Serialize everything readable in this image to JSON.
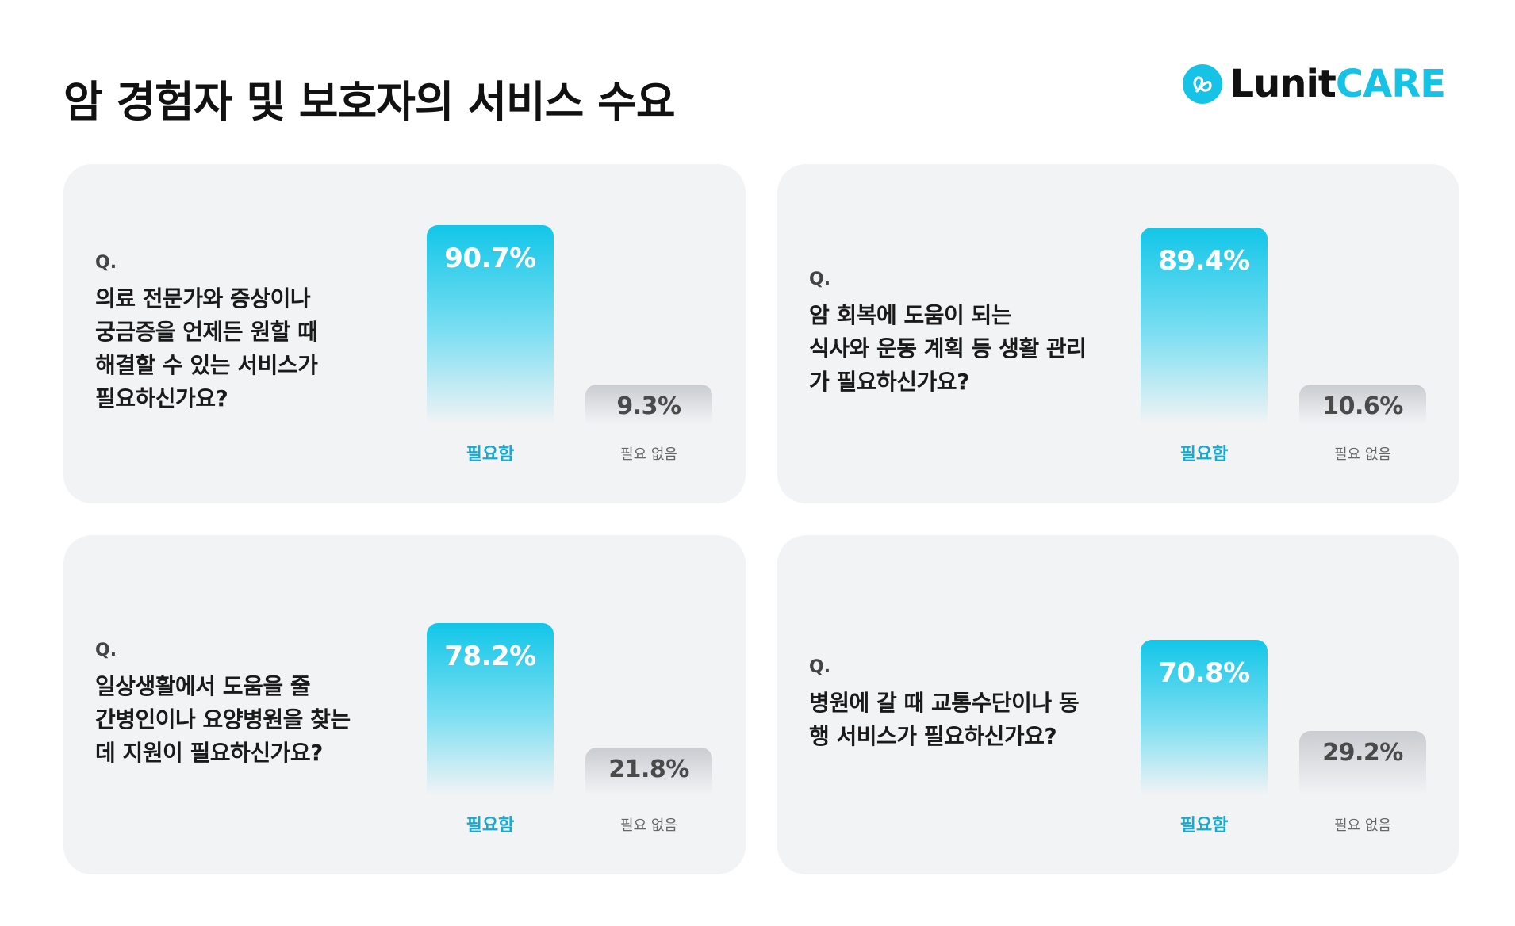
{
  "header": {
    "title": "암 경험자 및 보호자의 서비스 수요",
    "logo_lunit": "Lunit",
    "logo_care": "CARE"
  },
  "colors": {
    "accent": "#14c3e6",
    "need_label": "#17a9cf",
    "no_bar": "#c9ccd0",
    "card_bg": "#f2f3f5"
  },
  "cards": [
    {
      "q_prefix": "Q.",
      "question_lines": [
        "의료 전문가와 증상이나",
        "궁금증을 언제든 원할 때",
        "해결할 수 있는 서비스가",
        "필요하신가요?"
      ]
    },
    {
      "q_prefix": "Q.",
      "question_lines": [
        "암 회복에 도움이 되는",
        "식사와 운동 계획 등 생활 관리",
        "가 필요하신가요?"
      ]
    },
    {
      "q_prefix": "Q.",
      "question_lines": [
        "일상생활에서 도움을 줄",
        "간병인이나 요양병원을 찾는",
        "데 지원이 필요하신가요?"
      ]
    },
    {
      "q_prefix": "Q.",
      "question_lines": [
        "병원에 갈 때 교통수단이나 동",
        "행 서비스가 필요하신가요?"
      ]
    }
  ],
  "chart_data": [
    {
      "type": "bar",
      "categories": [
        "필요함",
        "필요 없음"
      ],
      "values": [
        90.7,
        9.3
      ],
      "labels": [
        "90.7%",
        "9.3%"
      ],
      "ylim": [
        0,
        100
      ]
    },
    {
      "type": "bar",
      "categories": [
        "필요함",
        "필요 없음"
      ],
      "values": [
        89.4,
        10.6
      ],
      "labels": [
        "89.4%",
        "10.6%"
      ],
      "ylim": [
        0,
        100
      ]
    },
    {
      "type": "bar",
      "categories": [
        "필요함",
        "필요 없음"
      ],
      "values": [
        78.2,
        21.8
      ],
      "labels": [
        "78.2%",
        "21.8%"
      ],
      "ylim": [
        0,
        100
      ]
    },
    {
      "type": "bar",
      "categories": [
        "필요함",
        "필요 없음"
      ],
      "values": [
        70.8,
        29.2
      ],
      "labels": [
        "70.8%",
        "29.2%"
      ],
      "ylim": [
        0,
        100
      ]
    }
  ]
}
